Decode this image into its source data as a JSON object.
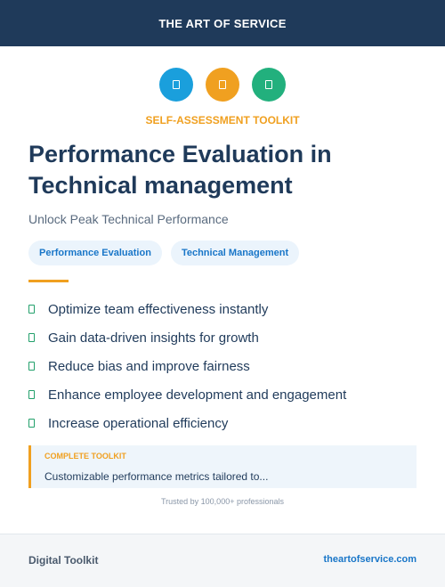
{
  "header": {
    "title": "THE ART OF SERVICE"
  },
  "icons": [
    {
      "name": "document-icon",
      "color": "#1a9fdc"
    },
    {
      "name": "document-icon",
      "color": "#f0a020"
    },
    {
      "name": "document-icon",
      "color": "#22b07d"
    }
  ],
  "kicker": "SELF-ASSESSMENT TOOLKIT",
  "title": "Performance Evaluation in Technical management",
  "subtitle": "Unlock Peak Technical Performance",
  "tags": [
    "Performance Evaluation",
    "Technical Management"
  ],
  "features": [
    "Optimize team effectiveness instantly",
    "Gain data-driven insights for growth",
    "Reduce bias and improve fairness",
    "Enhance employee development and engagement",
    "Increase operational efficiency"
  ],
  "callout": {
    "label": "COMPLETE TOOLKIT",
    "text": "Customizable performance metrics tailored to..."
  },
  "trust": "Trusted by 100,000+ professionals",
  "footer": {
    "left": "Digital Toolkit",
    "right": "theartofservice.com"
  },
  "colors": {
    "navy": "#1f3a5a",
    "accent": "#f0a020",
    "link": "#1976c8",
    "check": "#22a06b"
  }
}
